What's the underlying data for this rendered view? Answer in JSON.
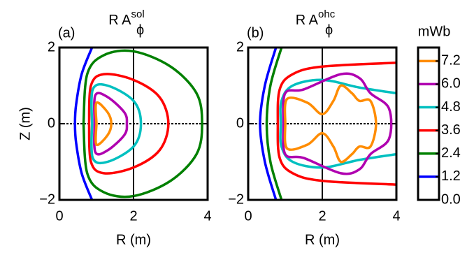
{
  "chart_data": [
    {
      "type": "contour",
      "panel": "(a)",
      "title": "R A",
      "title_sup": "sol",
      "title_sub": "ϕ",
      "xlabel": "R (m)",
      "ylabel": "Z (m)",
      "xlim": [
        0,
        4
      ],
      "ylim": [
        -2,
        2
      ],
      "xticks": [
        0,
        2,
        4
      ],
      "yticks": [
        {
          "value": -2,
          "label": "−2"
        },
        0,
        2
      ],
      "series": [
        {
          "level": 1.2,
          "color": "#0000ff",
          "x": [
            0.88,
            0.6,
            0.45,
            0.42,
            0.45,
            0.6,
            0.88
          ],
          "y": [
            2,
            1.3,
            0.5,
            0,
            -0.5,
            -1.3,
            -2
          ]
        },
        {
          "level": 2.4,
          "color": "#008000",
          "x": [
            0.65,
            0.75,
            1.2,
            2.0,
            3.0,
            3.7,
            3.85,
            3.7,
            3.0,
            2.0,
            1.2,
            0.75,
            0.65
          ],
          "y": [
            0,
            1.3,
            1.8,
            1.9,
            1.5,
            0.8,
            0,
            -0.8,
            -1.5,
            -1.9,
            -1.8,
            -1.3,
            0
          ]
        },
        {
          "level": 3.6,
          "color": "#ff0000",
          "x": [
            0.8,
            0.85,
            1.2,
            2.0,
            2.7,
            2.94,
            2.7,
            2.0,
            1.2,
            0.85,
            0.8
          ],
          "y": [
            0,
            1.0,
            1.3,
            1.15,
            0.7,
            0,
            -0.7,
            -1.15,
            -1.3,
            -1.0,
            0
          ]
        },
        {
          "level": 4.8,
          "color": "#00c0c0",
          "x": [
            0.88,
            0.9,
            1.3,
            2.0,
            2.2,
            2.0,
            1.3,
            0.9,
            0.88
          ],
          "y": [
            0,
            0.9,
            1.0,
            0.6,
            0,
            -0.6,
            -1.0,
            -0.9,
            0
          ]
        },
        {
          "level": 6.0,
          "color": "#b000b0",
          "x": [
            0.95,
            0.97,
            1.3,
            1.75,
            1.82,
            1.75,
            1.3,
            0.97,
            0.95
          ],
          "y": [
            0,
            0.75,
            0.7,
            0.3,
            0,
            -0.3,
            -0.7,
            -0.75,
            0
          ]
        },
        {
          "level": 7.2,
          "color": "#ff8c00",
          "x": [
            1.0,
            1.0,
            1.3,
            1.4,
            1.3,
            1.0,
            1.0
          ],
          "y": [
            0,
            0.55,
            0.3,
            0,
            -0.3,
            -0.55,
            0
          ]
        }
      ]
    },
    {
      "type": "contour",
      "panel": "(b)",
      "title": "R A",
      "title_sup": "ohc",
      "title_sub": "ϕ",
      "xlabel": "R (m)",
      "xlim": [
        0,
        4
      ],
      "ylim": [
        -2,
        2
      ],
      "xticks": [
        0,
        2,
        4
      ],
      "yticks": [
        {
          "value": -2,
          "label": "−2"
        },
        0,
        2
      ],
      "series": [
        {
          "level": 1.2,
          "color": "#0000ff",
          "x": [
            0.75,
            0.45,
            0.32,
            0.45,
            0.75
          ],
          "y": [
            2,
            1.0,
            0,
            -1.0,
            -2
          ]
        },
        {
          "level": 2.4,
          "color": "#008000",
          "x": [
            0.9,
            0.6,
            0.5,
            0.6,
            0.9
          ],
          "y": [
            2,
            1.0,
            0,
            -1.0,
            -2
          ]
        },
        {
          "level": 3.6,
          "color": "#ff0000",
          "x": [
            4,
            2.0,
            1.2,
            0.85,
            0.8,
            0.85,
            1.2,
            2.0,
            4
          ],
          "y": [
            1.6,
            1.5,
            1.3,
            0.9,
            0,
            -0.9,
            -1.3,
            -1.5,
            -1.6
          ]
        },
        {
          "level": 4.8,
          "color": "#00c0c0",
          "x": [
            4,
            3.0,
            2.0,
            1.2,
            0.9,
            0.88,
            0.9,
            1.2,
            2.0,
            3.0,
            4
          ],
          "y": [
            0.8,
            0.95,
            1.15,
            1.0,
            0.6,
            0,
            -0.6,
            -1.0,
            -1.15,
            -0.95,
            -0.8
          ]
        },
        {
          "level": 6.0,
          "color": "#b000b0",
          "x": [
            0.95,
            1.0,
            1.5,
            2.5,
            3.0,
            3.3,
            3.8,
            3.8,
            3.3,
            3.0,
            2.5,
            1.5,
            1.0,
            0.95
          ],
          "y": [
            0,
            0.8,
            0.9,
            1.3,
            1.2,
            0.8,
            0.4,
            -0.4,
            -0.8,
            -1.2,
            -1.3,
            -0.9,
            -0.8,
            0
          ]
        },
        {
          "level": 7.2,
          "color": "#ff8c00",
          "x": [
            1.0,
            1.05,
            1.6,
            2.0,
            2.3,
            2.5,
            2.8,
            3.0,
            3.3,
            3.45,
            3.3,
            3.0,
            2.8,
            2.5,
            2.3,
            2.0,
            1.6,
            1.05,
            1.0
          ],
          "y": [
            0,
            0.65,
            0.55,
            0.25,
            0.6,
            1.0,
            0.8,
            0.6,
            0.6,
            0,
            -0.6,
            -0.6,
            -0.8,
            -1.0,
            -0.6,
            -0.25,
            -0.55,
            -0.65,
            0
          ]
        }
      ]
    },
    {
      "type": "colorbar",
      "title": "mWb",
      "ylim": [
        0,
        7.9
      ],
      "yticks": [
        {
          "value": 0,
          "label": "0.0"
        },
        1.2,
        2.4,
        3.6,
        4.8,
        {
          "value": 6,
          "label": "6.0"
        },
        7.2
      ],
      "levels": [
        {
          "value": 1.2,
          "color": "#0000ff"
        },
        {
          "value": 2.4,
          "color": "#008000"
        },
        {
          "value": 3.6,
          "color": "#ff0000"
        },
        {
          "value": 4.8,
          "color": "#00c0c0"
        },
        {
          "value": 6.0,
          "color": "#b000b0"
        },
        {
          "value": 7.2,
          "color": "#ff8c00"
        }
      ]
    }
  ]
}
